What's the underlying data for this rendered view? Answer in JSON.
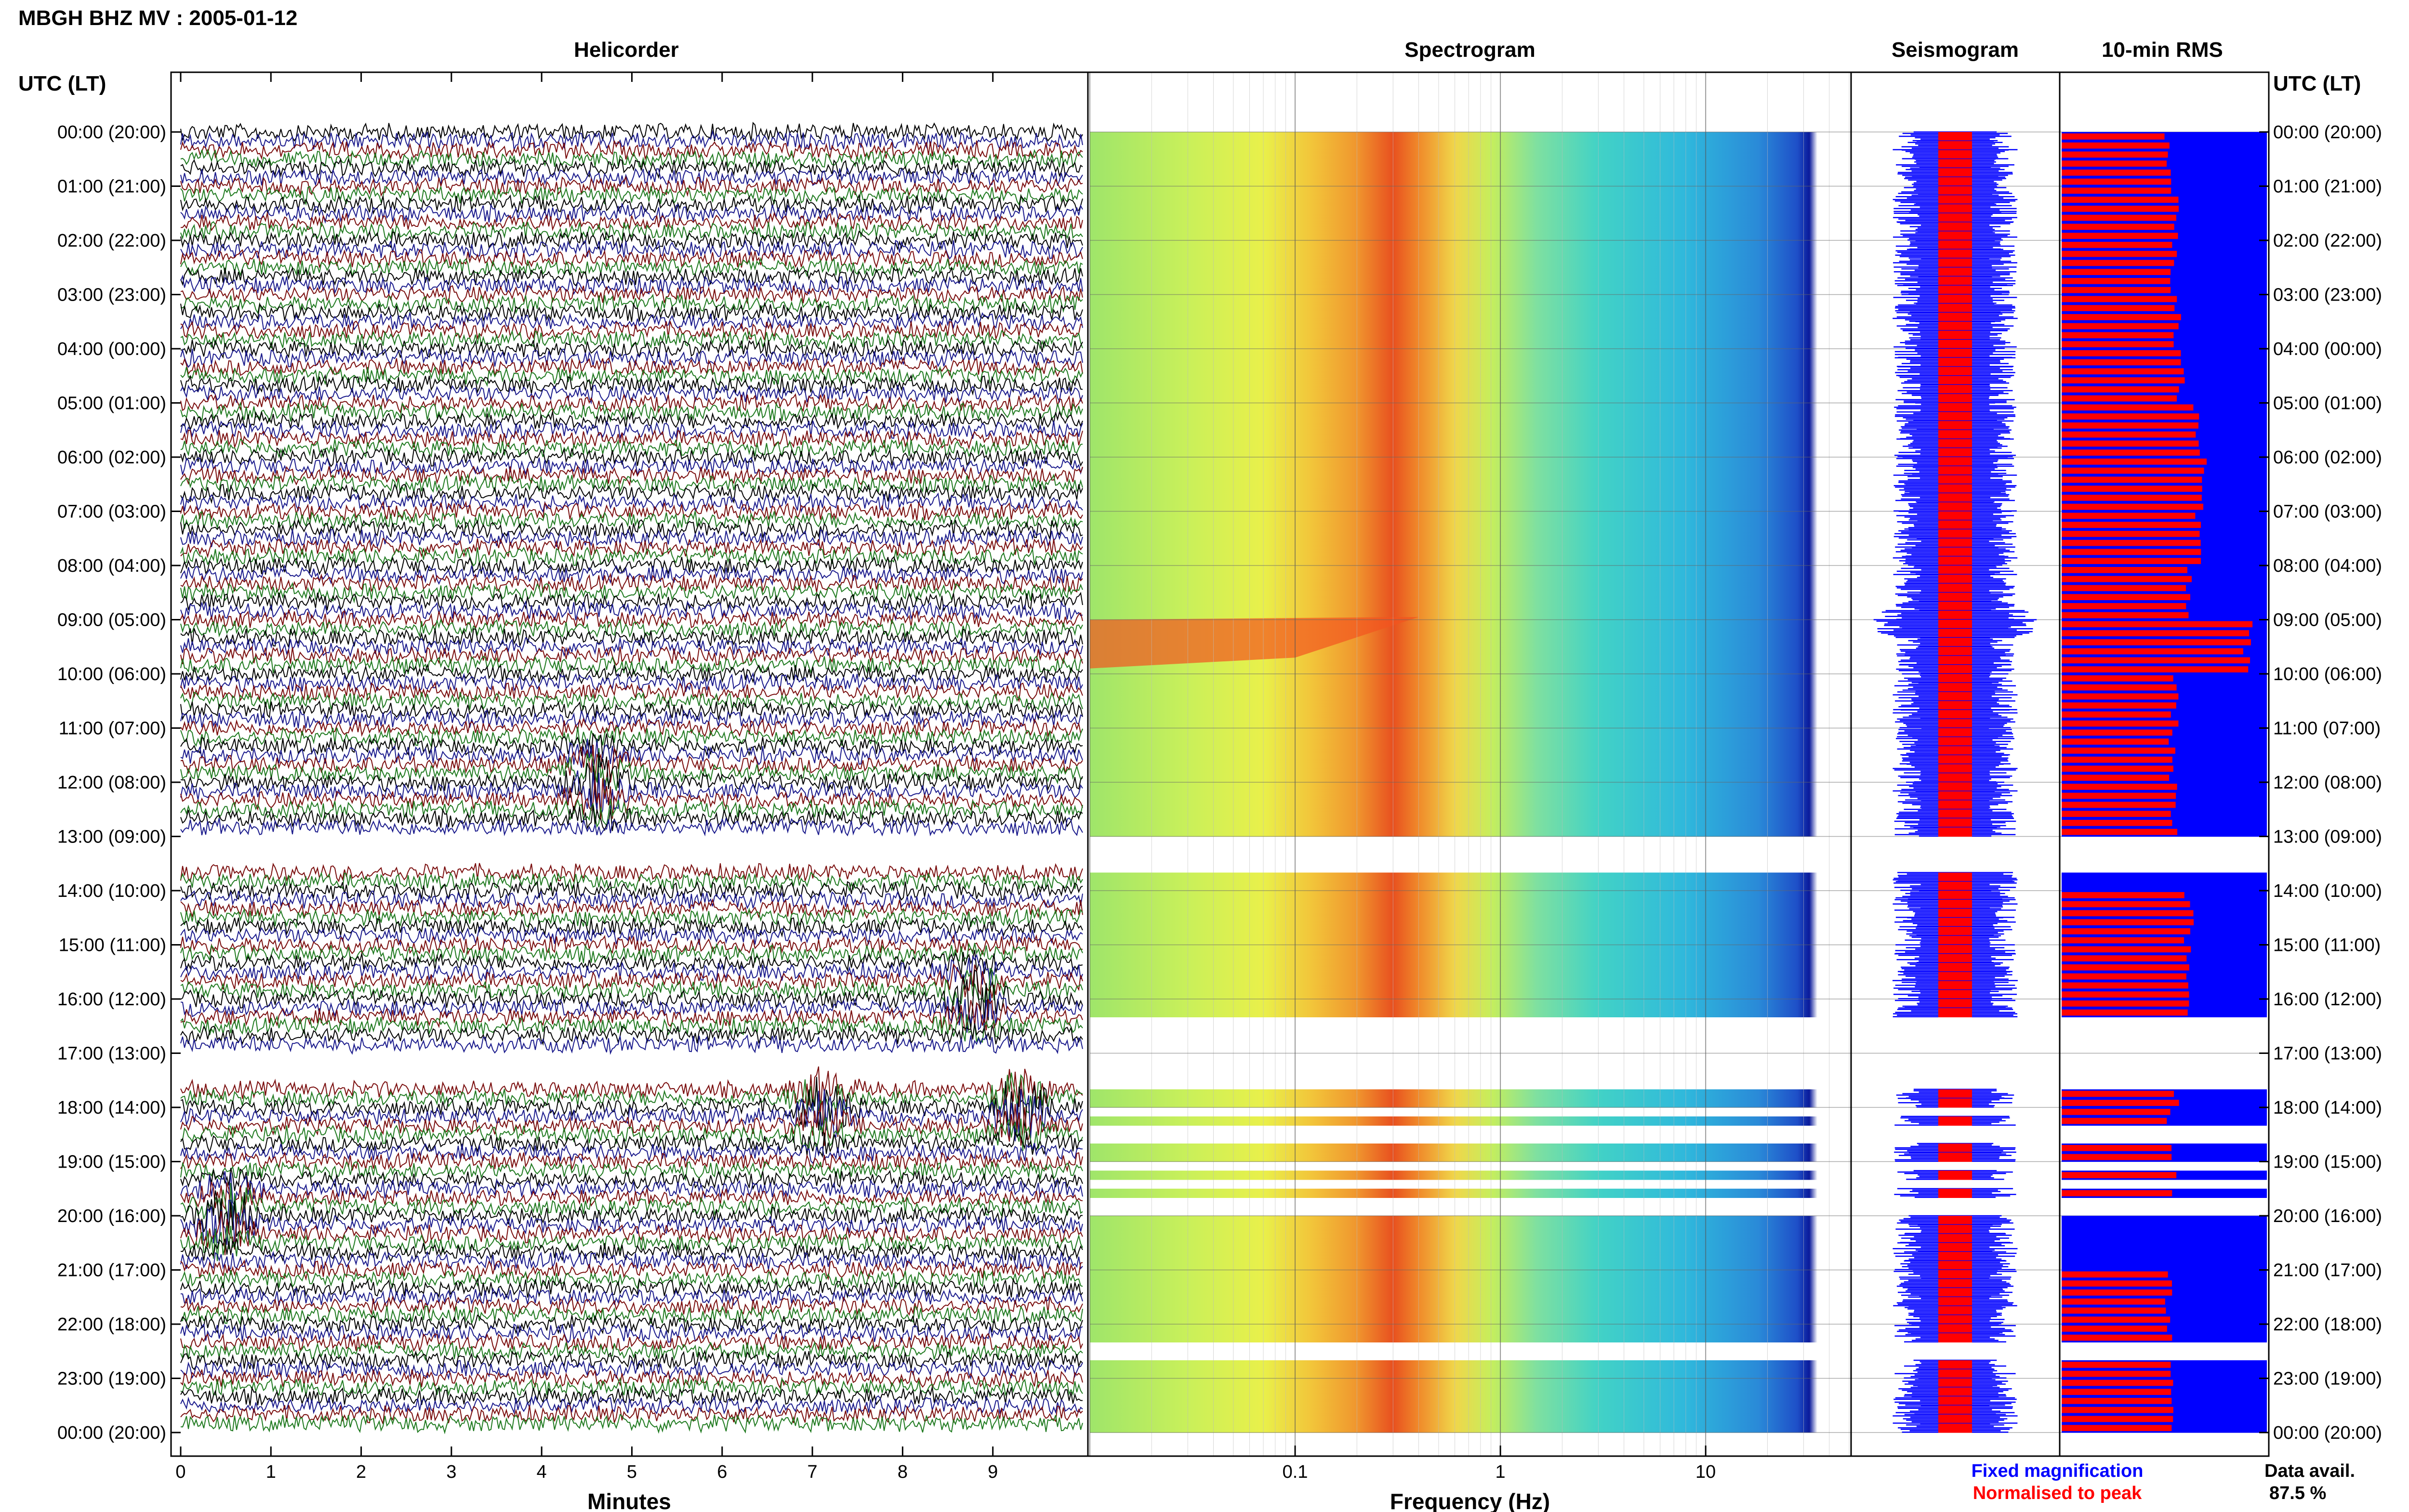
{
  "page_title": "MBGH BHZ MV : 2005-01-12",
  "colors": {
    "helicorder_traces": [
      "#000000",
      "#1a1a8c",
      "#7a0d0d",
      "#1f7a1f"
    ],
    "fixed_magnification": "#0000ff",
    "normalised_to_peak": "#ff0000"
  },
  "chart_data": [
    {
      "type": "line",
      "title": "Helicorder",
      "xlabel": "Minutes",
      "ylabel": "UTC (LT)",
      "xlim": [
        0,
        10
      ],
      "x_ticks": [
        "0",
        "1",
        "2",
        "3",
        "4",
        "5",
        "6",
        "7",
        "8",
        "9"
      ],
      "y_ticks": [
        "00:00 (20:00)",
        "01:00 (21:00)",
        "02:00 (22:00)",
        "03:00 (23:00)",
        "04:00 (00:00)",
        "05:00 (01:00)",
        "06:00 (02:00)",
        "07:00 (03:00)",
        "08:00 (04:00)",
        "09:00 (05:00)",
        "10:00 (06:00)",
        "11:00 (07:00)",
        "12:00 (08:00)",
        "13:00 (09:00)",
        "14:00 (10:00)",
        "15:00 (11:00)",
        "16:00 (12:00)",
        "17:00 (13:00)",
        "18:00 (14:00)",
        "19:00 (15:00)",
        "20:00 (16:00)",
        "21:00 (17:00)",
        "22:00 (18:00)",
        "23:00 (19:00)",
        "00:00 (20:00)"
      ],
      "data_gaps_utc": [
        [
          "13:00",
          "13:40"
        ],
        [
          "17:00",
          "17:40"
        ]
      ],
      "events": [
        {
          "utc_hour": 12,
          "minute": 4.6
        },
        {
          "utc_hour": 16,
          "minute": 8.8
        },
        {
          "utc_hour": 18,
          "minute": 7.1
        },
        {
          "utc_hour": 18,
          "minute": 9.3
        },
        {
          "utc_hour": 20,
          "minute": 0.5
        }
      ]
    },
    {
      "type": "heatmap",
      "title": "Spectrogram",
      "xlabel": "Frequency (Hz)",
      "x_scale": "log",
      "xlim": [
        0.01,
        50
      ],
      "x_ticks": [
        "0.1",
        "1",
        "10"
      ],
      "peak_band_hz": [
        0.2,
        0.5
      ],
      "data_gaps_utc": [
        [
          "13:00",
          "13:40"
        ],
        [
          "16:20",
          "17:40"
        ],
        [
          "18:00",
          "18:10"
        ],
        [
          "18:20",
          "18:40"
        ],
        [
          "19:00",
          "19:10"
        ],
        [
          "19:20",
          "19:30"
        ],
        [
          "19:40",
          "20:00"
        ],
        [
          "22:20",
          "22:40"
        ]
      ]
    },
    {
      "type": "line",
      "title": "Seismogram",
      "legend": [
        "Fixed magnification",
        "Normalised to peak"
      ]
    },
    {
      "type": "bar",
      "title": "10-min RMS",
      "ylabel": "UTC (LT)",
      "y_ticks": [
        "00:00 (20:00)",
        "01:00 (21:00)",
        "02:00 (22:00)",
        "03:00 (23:00)",
        "04:00 (00:00)",
        "05:00 (01:00)",
        "06:00 (02:00)",
        "07:00 (03:00)",
        "08:00 (04:00)",
        "09:00 (05:00)",
        "10:00 (06:00)",
        "11:00 (07:00)",
        "12:00 (08:00)",
        "13:00 (09:00)",
        "14:00 (10:00)",
        "15:00 (11:00)",
        "16:00 (12:00)",
        "17:00 (13:00)",
        "18:00 (14:00)",
        "19:00 (15:00)",
        "20:00 (16:00)",
        "21:00 (17:00)",
        "22:00 (18:00)",
        "23:00 (19:00)",
        "00:00 (20:00)"
      ],
      "rms_hourly_relative": [
        0.52,
        0.55,
        0.55,
        0.56,
        0.58,
        0.66,
        0.68,
        0.66,
        0.63,
        0.92,
        0.55,
        0.54,
        0.55,
        0.0,
        0.62,
        0.63,
        0.63,
        0.56,
        0.52,
        0.55,
        0.0,
        0.52,
        0.53,
        0.53
      ],
      "data_gaps_utc": [
        [
          "13:00",
          "13:40"
        ],
        [
          "16:20",
          "17:40"
        ],
        [
          "18:20",
          "18:40"
        ],
        [
          "19:00",
          "19:10"
        ],
        [
          "19:20",
          "19:30"
        ],
        [
          "19:40",
          "20:00"
        ],
        [
          "22:20",
          "22:40"
        ]
      ]
    }
  ],
  "data_availability": {
    "label": "Data avail.",
    "value": "87.5 %"
  }
}
